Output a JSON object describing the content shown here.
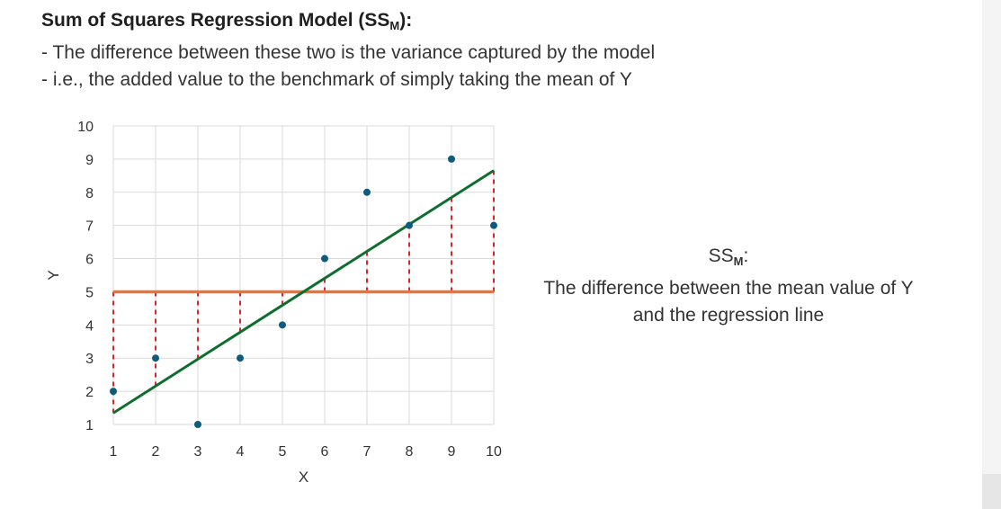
{
  "heading": {
    "title_main": "Sum of Squares Regression Model (SS",
    "title_sub": "M",
    "title_end": "):",
    "line1": "- The difference between these two is the variance captured by the model",
    "line2": "- i.e., the added value to the benchmark of simply taking the mean of Y"
  },
  "annotation": {
    "title_main": "SS",
    "title_sub": "M",
    "title_end": ":",
    "line1": "The difference between the mean value of Y",
    "line2": "and the regression line"
  },
  "colors": {
    "points": "#0f5a7d",
    "mean_line": "#e8743b",
    "regression_line": "#0f6e2e",
    "dashes": "#d9262b",
    "grid": "#d9d9d9"
  },
  "chart_data": {
    "type": "scatter",
    "xlabel": "X",
    "ylabel": "Y",
    "xlim": [
      1,
      10
    ],
    "ylim": [
      1,
      10
    ],
    "xticks": [
      1,
      2,
      3,
      4,
      5,
      6,
      7,
      8,
      9,
      10
    ],
    "yticks": [
      1,
      2,
      3,
      4,
      5,
      6,
      7,
      8,
      9,
      10
    ],
    "grid": true,
    "points": [
      {
        "x": 1,
        "y": 2
      },
      {
        "x": 2,
        "y": 3
      },
      {
        "x": 3,
        "y": 1
      },
      {
        "x": 4,
        "y": 3
      },
      {
        "x": 5,
        "y": 4
      },
      {
        "x": 6,
        "y": 6
      },
      {
        "x": 7,
        "y": 8
      },
      {
        "x": 8,
        "y": 7
      },
      {
        "x": 9,
        "y": 9
      },
      {
        "x": 10,
        "y": 7
      }
    ],
    "mean_y": 5,
    "regression": {
      "slope": 0.8121,
      "intercept": 0.5333
    }
  }
}
